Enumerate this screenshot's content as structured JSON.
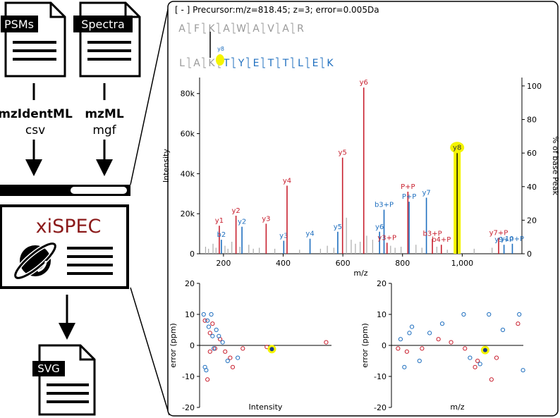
{
  "inputs": {
    "psms": {
      "tag": "PSMs",
      "format_bold": "mzIdentML",
      "format_alt": "csv"
    },
    "spectra": {
      "tag": "Spectra",
      "format_bold": "mzML",
      "format_alt": "mgf"
    }
  },
  "app": {
    "name": "xiSPEC",
    "accent": "#8b1a1a"
  },
  "output": {
    "tag": "SVG"
  },
  "viewer": {
    "header": "[ - ] Precursor:m/z=818.45; z=3; error=0.005Da",
    "peptide_top": [
      "A",
      "F",
      "K",
      "A",
      "W",
      "A",
      "V",
      "A",
      "R"
    ],
    "peptide_bottom": [
      "L",
      "A",
      "K",
      "T",
      "Y",
      "E",
      "T",
      "T",
      "L",
      "E",
      "K"
    ],
    "crosslink_label": "y8"
  },
  "colors": {
    "b_ion": "#c8202f",
    "y_ion": "#1f6fbf",
    "unassigned": "#aaaaaa",
    "highlight": "#f4f400"
  },
  "chart_data": [
    {
      "type": "bar",
      "xlabel": "m/z",
      "ylabel": "Intensity",
      "y2label": "% of base Peak",
      "xlim": [
        120,
        1200
      ],
      "ylim": [
        0,
        88000
      ],
      "xticks": [
        200,
        400,
        600,
        800,
        1000
      ],
      "xtick_labels": [
        "200",
        "400",
        "600",
        "800",
        "1,000"
      ],
      "yticks": [
        0,
        20000,
        40000,
        60000,
        80000
      ],
      "ytick_labels": [
        "0",
        "20k",
        "40k",
        "60k",
        "80k"
      ],
      "y2ticks": [
        0,
        20,
        40,
        60,
        80,
        100
      ],
      "y2tick_labels": [
        "0",
        "20",
        "40",
        "60",
        "80",
        "100"
      ],
      "annotated_peaks": [
        {
          "label": "y1",
          "mz": 186,
          "intensity": 14000,
          "ion": "b"
        },
        {
          "label": "b2",
          "mz": 193,
          "intensity": 7000,
          "ion": "y"
        },
        {
          "label": "y2",
          "mz": 242,
          "intensity": 19000,
          "ion": "b"
        },
        {
          "label": "y2",
          "mz": 262,
          "intensity": 13500,
          "ion": "y"
        },
        {
          "label": "y3",
          "mz": 343,
          "intensity": 15000,
          "ion": "b"
        },
        {
          "label": "y3",
          "mz": 402,
          "intensity": 6500,
          "ion": "y"
        },
        {
          "label": "y4",
          "mz": 413,
          "intensity": 34000,
          "ion": "b"
        },
        {
          "label": "y4",
          "mz": 490,
          "intensity": 7500,
          "ion": "y"
        },
        {
          "label": "y5",
          "mz": 583,
          "intensity": 11000,
          "ion": "y"
        },
        {
          "label": "y5",
          "mz": 599,
          "intensity": 48000,
          "ion": "b"
        },
        {
          "label": "y6",
          "mz": 670,
          "intensity": 83000,
          "ion": "b"
        },
        {
          "label": "y6",
          "mz": 723,
          "intensity": 11000,
          "ion": "y"
        },
        {
          "label": "b3+P",
          "mz": 738,
          "intensity": 22000,
          "ion": "y"
        },
        {
          "label": "y3+P",
          "mz": 748,
          "intensity": 5500,
          "ion": "b"
        },
        {
          "label": "P+P",
          "mz": 818,
          "intensity": 31000,
          "ion": "b"
        },
        {
          "label": "P+P",
          "mz": 822,
          "intensity": 26000,
          "ion": "y"
        },
        {
          "label": "y7",
          "mz": 880,
          "intensity": 28000,
          "ion": "y"
        },
        {
          "label": "b3+P",
          "mz": 900,
          "intensity": 7500,
          "ion": "b"
        },
        {
          "label": "b4+P",
          "mz": 930,
          "intensity": 4500,
          "ion": "b"
        },
        {
          "label": "y8",
          "mz": 983,
          "intensity": 52000,
          "ion": "highlight"
        },
        {
          "label": "y7+P",
          "mz": 1122,
          "intensity": 8000,
          "ion": "b"
        },
        {
          "label": "y9+P",
          "mz": 1140,
          "intensity": 4500,
          "ion": "y"
        },
        {
          "label": "y10+P",
          "mz": 1168,
          "intensity": 5000,
          "ion": "y"
        }
      ],
      "unassigned_peaks": [
        {
          "mz": 140,
          "intensity": 3500
        },
        {
          "mz": 150,
          "intensity": 2500
        },
        {
          "mz": 165,
          "intensity": 5000
        },
        {
          "mz": 175,
          "intensity": 3000
        },
        {
          "mz": 205,
          "intensity": 4000
        },
        {
          "mz": 215,
          "intensity": 2500
        },
        {
          "mz": 228,
          "intensity": 6000
        },
        {
          "mz": 255,
          "intensity": 3500
        },
        {
          "mz": 285,
          "intensity": 4500
        },
        {
          "mz": 300,
          "intensity": 2500
        },
        {
          "mz": 320,
          "intensity": 3000
        },
        {
          "mz": 372,
          "intensity": 2500
        },
        {
          "mz": 455,
          "intensity": 2000
        },
        {
          "mz": 525,
          "intensity": 2500
        },
        {
          "mz": 548,
          "intensity": 4000
        },
        {
          "mz": 570,
          "intensity": 3000
        },
        {
          "mz": 612,
          "intensity": 18000
        },
        {
          "mz": 628,
          "intensity": 7000
        },
        {
          "mz": 642,
          "intensity": 5000
        },
        {
          "mz": 658,
          "intensity": 6000
        },
        {
          "mz": 680,
          "intensity": 9000
        },
        {
          "mz": 700,
          "intensity": 7000
        },
        {
          "mz": 760,
          "intensity": 4000
        },
        {
          "mz": 775,
          "intensity": 3000
        },
        {
          "mz": 795,
          "intensity": 3500
        },
        {
          "mz": 845,
          "intensity": 4500
        },
        {
          "mz": 865,
          "intensity": 3000
        },
        {
          "mz": 915,
          "intensity": 3500
        },
        {
          "mz": 950,
          "intensity": 2000
        },
        {
          "mz": 1040,
          "intensity": 2500
        },
        {
          "mz": 1100,
          "intensity": 3000
        }
      ]
    },
    {
      "type": "scatter",
      "xlabel": "Intensity",
      "ylabel": "error (ppm)",
      "xlim": [
        0,
        100
      ],
      "ylim": [
        -20,
        20
      ],
      "yticks": [
        -20,
        -10,
        0,
        10,
        20
      ],
      "series": [
        {
          "ion": "b",
          "points": [
            [
              2,
              8
            ],
            [
              4,
              -11
            ],
            [
              6,
              4
            ],
            [
              6,
              -2
            ],
            [
              8,
              7
            ],
            [
              10,
              -1
            ],
            [
              14,
              2
            ],
            [
              18,
              -2
            ],
            [
              22,
              -4
            ],
            [
              24,
              -7
            ],
            [
              32,
              -1
            ],
            [
              51,
              -0.5
            ],
            [
              98,
              1
            ]
          ]
        },
        {
          "ion": "y",
          "points": [
            [
              1,
              10
            ],
            [
              2,
              -7
            ],
            [
              3,
              -8
            ],
            [
              4,
              8
            ],
            [
              5,
              6
            ],
            [
              7,
              10
            ],
            [
              8,
              3
            ],
            [
              9,
              -1
            ],
            [
              11,
              5
            ],
            [
              13,
              3
            ],
            [
              16,
              1
            ],
            [
              20,
              -5
            ],
            [
              28,
              -4
            ]
          ]
        },
        {
          "ion": "highlight",
          "points": [
            [
              55,
              -1.2
            ]
          ]
        }
      ]
    },
    {
      "type": "scatter",
      "xlabel": "m/z",
      "ylabel": "error (ppm)",
      "xlim": [
        0,
        100
      ],
      "ylim": [
        -20,
        20
      ],
      "yticks": [
        -20,
        -10,
        0,
        10,
        20
      ],
      "series": [
        {
          "ion": "b",
          "points": [
            [
              3,
              -1
            ],
            [
              10,
              -2
            ],
            [
              22,
              -1
            ],
            [
              35,
              2
            ],
            [
              45,
              1
            ],
            [
              56,
              -1
            ],
            [
              64,
              -7
            ],
            [
              66,
              -5
            ],
            [
              77,
              -11
            ],
            [
              81,
              -4
            ],
            [
              98,
              7
            ]
          ]
        },
        {
          "ion": "y",
          "points": [
            [
              5,
              2
            ],
            [
              8,
              -7
            ],
            [
              12,
              4
            ],
            [
              14,
              6
            ],
            [
              20,
              -5
            ],
            [
              28,
              4
            ],
            [
              38,
              7
            ],
            [
              55,
              10
            ],
            [
              60,
              -4
            ],
            [
              68,
              -6
            ],
            [
              75,
              10
            ],
            [
              86,
              5
            ],
            [
              99,
              10
            ],
            [
              102,
              -8
            ]
          ]
        },
        {
          "ion": "highlight",
          "points": [
            [
              72,
              -1.5
            ]
          ]
        }
      ]
    }
  ]
}
